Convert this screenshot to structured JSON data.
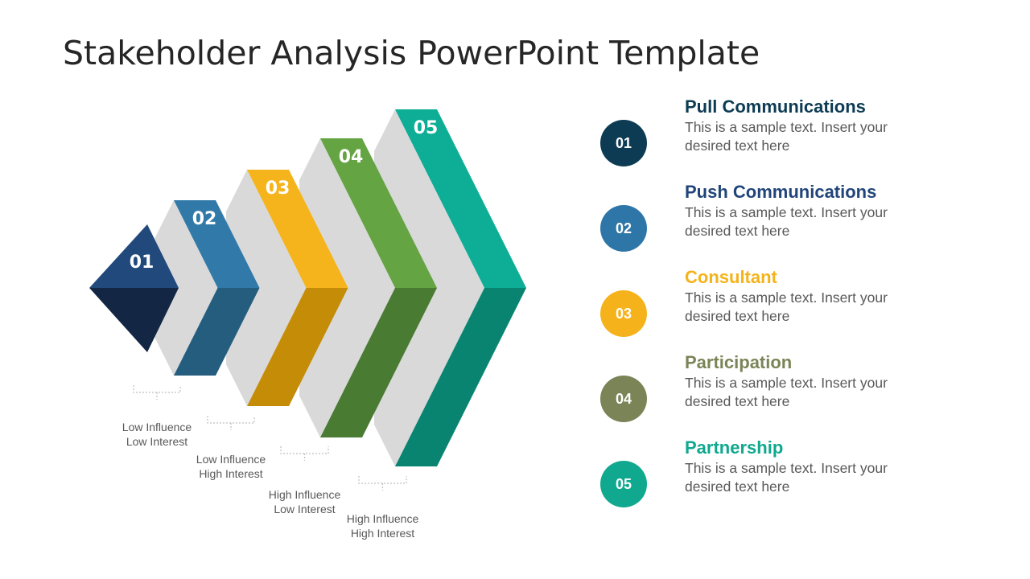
{
  "title": "Stakeholder Analysis PowerPoint Template",
  "diagram": {
    "steps": [
      {
        "number": "01",
        "top_color": "#21497c",
        "bottom_color": "#132643"
      },
      {
        "number": "02",
        "top_color": "#3179a9",
        "bottom_color": "#245d7e"
      },
      {
        "number": "03",
        "top_color": "#f5b41c",
        "bottom_color": "#c58c08"
      },
      {
        "number": "04",
        "top_color": "#65a442",
        "bottom_color": "#4a7b32"
      },
      {
        "number": "05",
        "top_color": "#0dad96",
        "bottom_color": "#088470"
      }
    ],
    "side_color": "#d9d9d9",
    "labels": [
      {
        "line1": "Low Influence",
        "line2": "Low Interest"
      },
      {
        "line1": "Low Influence",
        "line2": "High Interest"
      },
      {
        "line1": "High Influence",
        "line2": "Low Interest"
      },
      {
        "line1": "High Influence",
        "line2": "High Interest"
      }
    ]
  },
  "items": [
    {
      "number": "01",
      "title": "Pull Communications",
      "text": "This is a sample text. Insert your desired text here",
      "circle_color": "#0c3b53",
      "title_color": "#0c3b53"
    },
    {
      "number": "02",
      "title": "Push Communications",
      "text": "This is a sample text. Insert your desired text here",
      "circle_color": "#2f76a8",
      "title_color": "#21457a"
    },
    {
      "number": "03",
      "title": "Consultant",
      "text": "This is a sample text. Insert your desired text here",
      "circle_color": "#f5b21b",
      "title_color": "#f5b21b"
    },
    {
      "number": "04",
      "title": "Participation",
      "text": "This is a sample text. Insert your desired text here",
      "circle_color": "#7a8457",
      "title_color": "#7a8457"
    },
    {
      "number": "05",
      "title": "Partnership",
      "text": "This is a sample text. Insert your desired text here",
      "circle_color": "#10a88f",
      "title_color": "#10a88f"
    }
  ]
}
